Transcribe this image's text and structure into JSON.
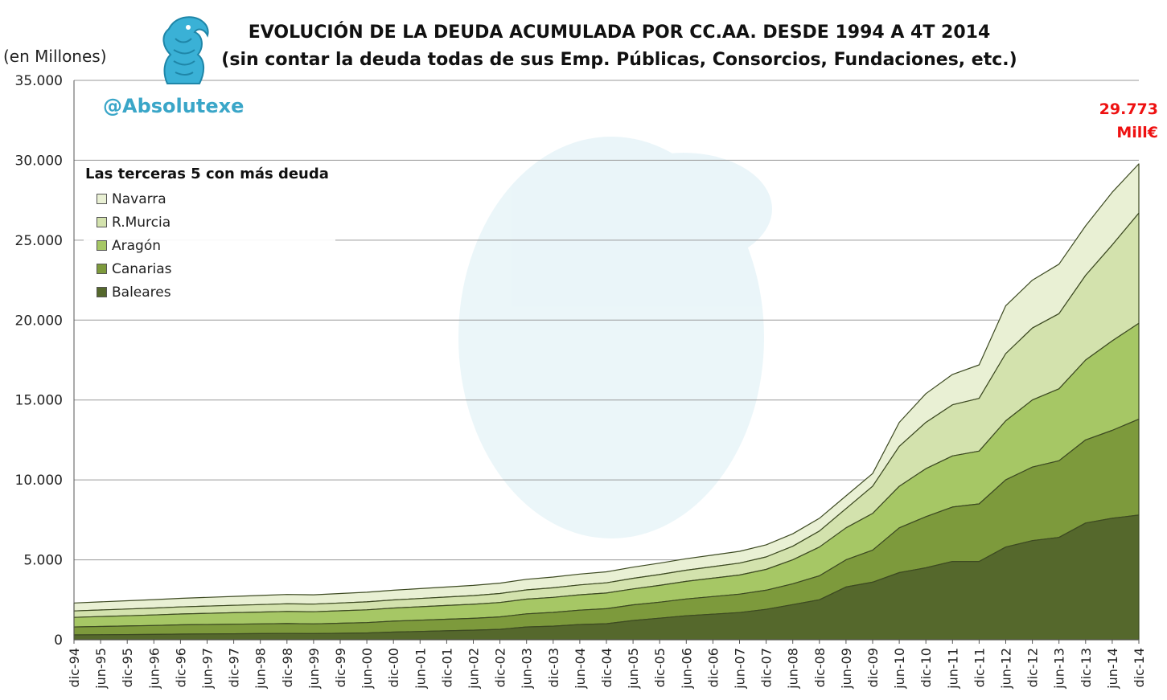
{
  "header": {
    "title_line1": "EVOLUCIÓN DE LA DEUDA ACUMULADA POR CC.AA. DESDE 1994 A 4T 2014",
    "title_line2": "(sin contar la deuda todas de sus Emp. Públicas, Consorcios, Fundaciones, etc.)",
    "unit_label": "(en Millones)",
    "handle": "@Absolutexe",
    "annotation_line1": "29.773",
    "annotation_line2": "Mill€"
  },
  "legend": {
    "title": "Las terceras 5 con más deuda",
    "items": [
      "Navarra",
      "R.Murcia",
      "Aragón",
      "Canarias",
      "Baleares"
    ]
  },
  "colors": {
    "Baleares": "#55682c",
    "Canarias": "#7d9a3c",
    "Aragón": "#a6c765",
    "R.Murcia": "#d3e2ad",
    "Navarra": "#e9f0d4",
    "annotation": "#ee1111",
    "handle": "#3aa6c8",
    "watermark": "#3aa6c8"
  },
  "chart_data": {
    "type": "area",
    "stacked": true,
    "grid": true,
    "legend_position": "top-left",
    "ylim": [
      0,
      35000
    ],
    "yticks": [
      0,
      5000,
      10000,
      15000,
      20000,
      25000,
      30000,
      35000
    ],
    "ytick_labels": [
      "0",
      "5.000",
      "10.000",
      "15.000",
      "20.000",
      "25.000",
      "30.000",
      "35.000"
    ],
    "x_labels": [
      "dic-94",
      "jun-95",
      "dic-95",
      "jun-96",
      "dic-96",
      "jun-97",
      "dic-97",
      "jun-98",
      "dic-98",
      "jun-99",
      "dic-99",
      "jun-00",
      "dic-00",
      "jun-01",
      "dic-01",
      "jun-02",
      "dic-02",
      "jun-03",
      "dic-03",
      "jun-04",
      "dic-04",
      "jun-05",
      "dic-05",
      "jun-06",
      "dic-06",
      "jun-07",
      "dic-07",
      "jun-08",
      "dic-08",
      "jun-09",
      "dic-09",
      "jun-10",
      "dic-10",
      "jun-11",
      "dic-11",
      "jun-12",
      "dic-12",
      "jun-13",
      "dic-13",
      "jun-14",
      "dic-14"
    ],
    "series": [
      {
        "name": "Baleares",
        "values": [
          300,
          310,
          320,
          330,
          350,
          360,
          370,
          380,
          390,
          380,
          400,
          420,
          480,
          520,
          560,
          600,
          650,
          800,
          850,
          950,
          1000,
          1200,
          1350,
          1500,
          1600,
          1700,
          1900,
          2200,
          2500,
          3300,
          3600,
          4200,
          4500,
          4900,
          4900,
          5800,
          6200,
          6400,
          7300,
          7600,
          7800
        ]
      },
      {
        "name": "Canarias",
        "values": [
          500,
          520,
          540,
          560,
          580,
          590,
          600,
          610,
          620,
          610,
          630,
          650,
          680,
          700,
          720,
          740,
          780,
          820,
          860,
          900,
          940,
          980,
          1000,
          1050,
          1100,
          1150,
          1200,
          1300,
          1500,
          1700,
          2000,
          2800,
          3200,
          3400,
          3600,
          4200,
          4600,
          4800,
          5200,
          5500,
          6000
        ]
      },
      {
        "name": "Aragón",
        "values": [
          600,
          620,
          640,
          660,
          680,
          700,
          720,
          740,
          760,
          760,
          780,
          800,
          820,
          840,
          860,
          880,
          900,
          920,
          940,
          960,
          980,
          1000,
          1050,
          1100,
          1150,
          1200,
          1300,
          1500,
          1800,
          2000,
          2300,
          2600,
          3000,
          3200,
          3300,
          3700,
          4200,
          4500,
          5000,
          5600,
          6000
        ]
      },
      {
        "name": "R.Murcia",
        "values": [
          400,
          410,
          420,
          430,
          440,
          450,
          460,
          470,
          480,
          480,
          490,
          500,
          510,
          520,
          530,
          540,
          560,
          580,
          600,
          620,
          640,
          660,
          680,
          700,
          720,
          740,
          780,
          850,
          1000,
          1200,
          1700,
          2500,
          2900,
          3200,
          3300,
          4200,
          4500,
          4700,
          5300,
          6000,
          6900
        ]
      },
      {
        "name": "Navarra",
        "values": [
          500,
          510,
          520,
          530,
          540,
          550,
          560,
          570,
          580,
          580,
          590,
          600,
          610,
          620,
          630,
          640,
          650,
          660,
          670,
          680,
          690,
          700,
          710,
          720,
          730,
          740,
          760,
          780,
          800,
          800,
          800,
          1500,
          1800,
          1900,
          2100,
          3000,
          3000,
          3100,
          3100,
          3300,
          3073
        ]
      }
    ]
  }
}
